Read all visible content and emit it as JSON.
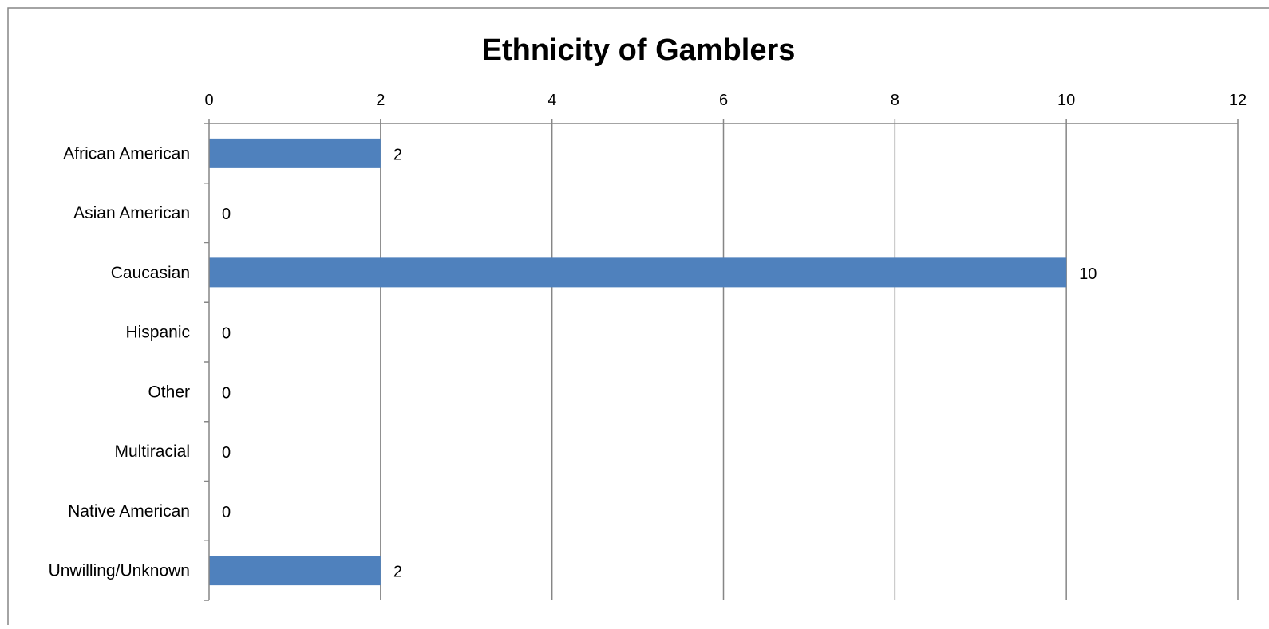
{
  "chart_data": {
    "type": "bar",
    "orientation": "horizontal",
    "title": "Ethnicity of Gamblers",
    "categories": [
      "African American",
      "Asian American",
      "Caucasian",
      "Hispanic",
      "Other",
      "Multiracial",
      "Native American",
      "Unwilling/Unknown"
    ],
    "values": [
      2,
      0,
      10,
      0,
      0,
      0,
      0,
      2
    ],
    "xlim": [
      0,
      12
    ],
    "x_ticks": [
      0,
      2,
      4,
      6,
      8,
      10,
      12
    ],
    "x_axis_position": "top",
    "grid": true,
    "data_labels": true,
    "legend": "none",
    "bar_color": "#4F81BD"
  },
  "colors": {
    "bar": "#4F81BD",
    "grid": "#868686",
    "frame": "#868686",
    "text": "#000000",
    "background": "#FFFFFF"
  }
}
